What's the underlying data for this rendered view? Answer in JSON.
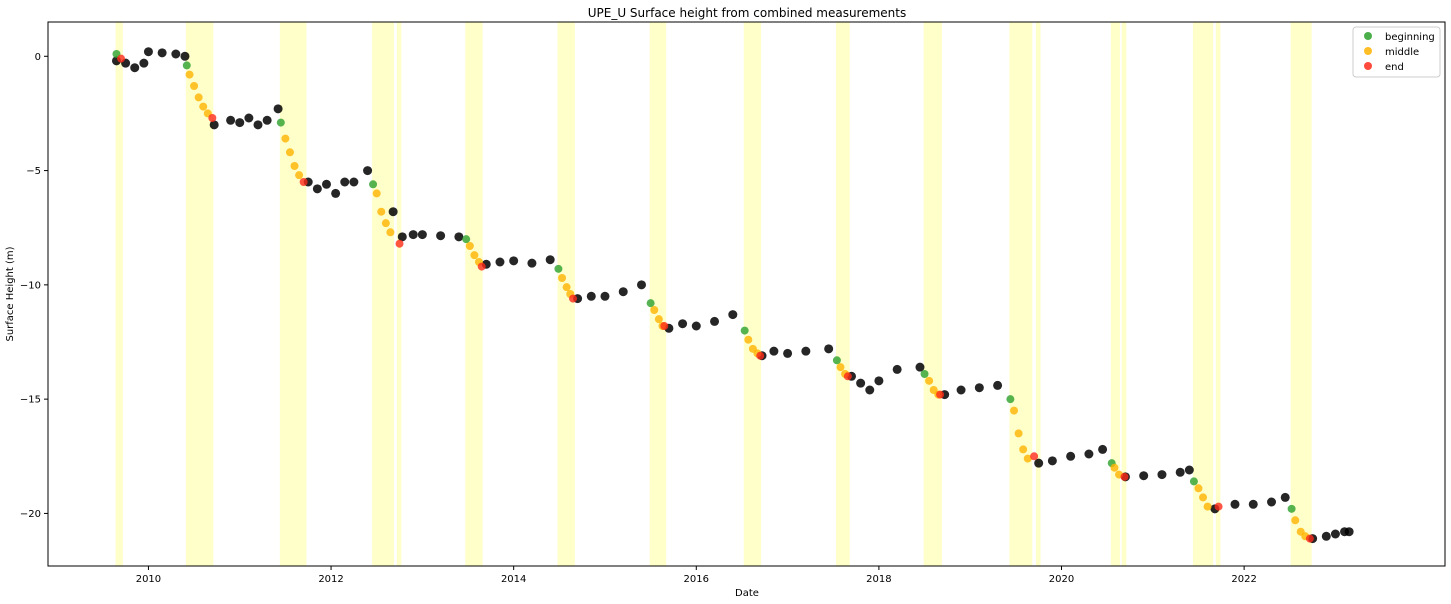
{
  "chart_data": {
    "type": "scatter",
    "title": "UPE_U Surface height from combined measurements",
    "xlabel": "Date",
    "ylabel": "Surface Height (m)",
    "xlim": [
      2008.9,
      2024.2
    ],
    "ylim": [
      -22.3,
      1.5
    ],
    "x_ticks": [
      2010,
      2012,
      2014,
      2016,
      2018,
      2020,
      2022
    ],
    "x_tick_labels": [
      "2010",
      "2012",
      "2014",
      "2016",
      "2018",
      "2020",
      "2022"
    ],
    "y_ticks": [
      0,
      -5,
      -10,
      -15,
      -20
    ],
    "y_tick_labels": [
      "0",
      "−5",
      "−10",
      "−15",
      "−20"
    ],
    "grid": false,
    "legend_position": "top-right",
    "legend": [
      {
        "name": "beginning",
        "color": "#2ca02c"
      },
      {
        "name": "middle",
        "color": "#ffb300"
      },
      {
        "name": "end",
        "color": "#ff2a1a"
      }
    ],
    "shaded_intervals_color": "#ffffc0",
    "shaded_intervals": [
      [
        2009.64,
        2009.72
      ],
      [
        2010.41,
        2010.71
      ],
      [
        2011.44,
        2011.73
      ],
      [
        2012.45,
        2012.69
      ],
      [
        2012.72,
        2012.77
      ],
      [
        2013.47,
        2013.66
      ],
      [
        2014.48,
        2014.67
      ],
      [
        2015.49,
        2015.67
      ],
      [
        2016.52,
        2016.71
      ],
      [
        2017.53,
        2017.68
      ],
      [
        2018.49,
        2018.69
      ],
      [
        2019.43,
        2019.68
      ],
      [
        2019.72,
        2019.77
      ],
      [
        2020.54,
        2020.64
      ],
      [
        2020.66,
        2020.71
      ],
      [
        2021.44,
        2021.66
      ],
      [
        2021.69,
        2021.74
      ],
      [
        2022.51,
        2022.74
      ]
    ],
    "series": [
      {
        "role": "baseline",
        "color": "#000000",
        "points": [
          [
            2009.65,
            -0.2
          ],
          [
            2009.75,
            -0.3
          ],
          [
            2009.85,
            -0.5
          ],
          [
            2009.95,
            -0.3
          ],
          [
            2010.0,
            0.2
          ],
          [
            2010.15,
            0.15
          ],
          [
            2010.3,
            0.1
          ],
          [
            2010.4,
            0.0
          ],
          [
            2010.72,
            -3.0
          ],
          [
            2010.9,
            -2.8
          ],
          [
            2011.0,
            -2.9
          ],
          [
            2011.1,
            -2.7
          ],
          [
            2011.2,
            -3.0
          ],
          [
            2011.3,
            -2.8
          ],
          [
            2011.42,
            -2.3
          ],
          [
            2011.75,
            -5.5
          ],
          [
            2011.85,
            -5.8
          ],
          [
            2011.95,
            -5.6
          ],
          [
            2012.05,
            -6.0
          ],
          [
            2012.15,
            -5.5
          ],
          [
            2012.25,
            -5.5
          ],
          [
            2012.4,
            -5.0
          ],
          [
            2012.68,
            -6.8
          ],
          [
            2012.78,
            -7.9
          ],
          [
            2012.9,
            -7.8
          ],
          [
            2013.0,
            -7.8
          ],
          [
            2013.2,
            -7.85
          ],
          [
            2013.4,
            -7.9
          ],
          [
            2013.7,
            -9.1
          ],
          [
            2013.85,
            -9.0
          ],
          [
            2014.0,
            -8.95
          ],
          [
            2014.2,
            -9.05
          ],
          [
            2014.4,
            -8.9
          ],
          [
            2014.7,
            -10.6
          ],
          [
            2014.85,
            -10.5
          ],
          [
            2015.0,
            -10.5
          ],
          [
            2015.2,
            -10.3
          ],
          [
            2015.4,
            -10.0
          ],
          [
            2015.7,
            -11.9
          ],
          [
            2015.85,
            -11.7
          ],
          [
            2016.0,
            -11.8
          ],
          [
            2016.2,
            -11.6
          ],
          [
            2016.4,
            -11.3
          ],
          [
            2016.72,
            -13.1
          ],
          [
            2016.85,
            -12.9
          ],
          [
            2017.0,
            -13.0
          ],
          [
            2017.2,
            -12.9
          ],
          [
            2017.45,
            -12.8
          ],
          [
            2017.7,
            -14.0
          ],
          [
            2017.8,
            -14.3
          ],
          [
            2017.9,
            -14.6
          ],
          [
            2018.0,
            -14.2
          ],
          [
            2018.2,
            -13.7
          ],
          [
            2018.45,
            -13.6
          ],
          [
            2018.72,
            -14.8
          ],
          [
            2018.9,
            -14.6
          ],
          [
            2019.1,
            -14.5
          ],
          [
            2019.3,
            -14.4
          ],
          [
            2019.75,
            -17.8
          ],
          [
            2019.9,
            -17.7
          ],
          [
            2020.1,
            -17.5
          ],
          [
            2020.3,
            -17.4
          ],
          [
            2020.45,
            -17.2
          ],
          [
            2020.7,
            -18.4
          ],
          [
            2020.9,
            -18.35
          ],
          [
            2021.1,
            -18.3
          ],
          [
            2021.3,
            -18.2
          ],
          [
            2021.4,
            -18.1
          ],
          [
            2021.68,
            -19.8
          ],
          [
            2021.9,
            -19.6
          ],
          [
            2022.1,
            -19.6
          ],
          [
            2022.3,
            -19.5
          ],
          [
            2022.45,
            -19.3
          ],
          [
            2022.75,
            -21.1
          ],
          [
            2022.9,
            -21.0
          ],
          [
            2023.0,
            -20.9
          ],
          [
            2023.1,
            -20.8
          ],
          [
            2023.15,
            -20.8
          ]
        ]
      },
      {
        "role": "beginning",
        "color": "#2ca02c",
        "points": [
          [
            2009.65,
            0.1
          ],
          [
            2010.42,
            -0.4
          ],
          [
            2011.45,
            -2.9
          ],
          [
            2012.46,
            -5.6
          ],
          [
            2013.48,
            -8.0
          ],
          [
            2014.49,
            -9.3
          ],
          [
            2015.5,
            -10.8
          ],
          [
            2016.53,
            -12.0
          ],
          [
            2017.54,
            -13.3
          ],
          [
            2018.5,
            -13.9
          ],
          [
            2019.44,
            -15.0
          ],
          [
            2020.55,
            -17.8
          ],
          [
            2021.45,
            -18.6
          ],
          [
            2022.52,
            -19.8
          ]
        ]
      },
      {
        "role": "middle",
        "color": "#ffb300",
        "points": [
          [
            2010.45,
            -0.8
          ],
          [
            2010.5,
            -1.3
          ],
          [
            2010.55,
            -1.8
          ],
          [
            2010.6,
            -2.2
          ],
          [
            2010.65,
            -2.5
          ],
          [
            2011.5,
            -3.6
          ],
          [
            2011.55,
            -4.2
          ],
          [
            2011.6,
            -4.8
          ],
          [
            2011.65,
            -5.2
          ],
          [
            2012.5,
            -6.0
          ],
          [
            2012.55,
            -6.8
          ],
          [
            2012.6,
            -7.3
          ],
          [
            2012.65,
            -7.7
          ],
          [
            2013.52,
            -8.3
          ],
          [
            2013.57,
            -8.7
          ],
          [
            2013.62,
            -9.0
          ],
          [
            2014.53,
            -9.7
          ],
          [
            2014.58,
            -10.1
          ],
          [
            2014.62,
            -10.4
          ],
          [
            2015.54,
            -11.1
          ],
          [
            2015.59,
            -11.5
          ],
          [
            2015.63,
            -11.8
          ],
          [
            2016.57,
            -12.4
          ],
          [
            2016.62,
            -12.8
          ],
          [
            2016.67,
            -13.0
          ],
          [
            2017.58,
            -13.6
          ],
          [
            2017.63,
            -13.9
          ],
          [
            2018.55,
            -14.2
          ],
          [
            2018.6,
            -14.6
          ],
          [
            2018.65,
            -14.8
          ],
          [
            2019.48,
            -15.5
          ],
          [
            2019.53,
            -16.5
          ],
          [
            2019.58,
            -17.2
          ],
          [
            2019.63,
            -17.6
          ],
          [
            2020.58,
            -18.0
          ],
          [
            2020.63,
            -18.3
          ],
          [
            2021.5,
            -18.9
          ],
          [
            2021.55,
            -19.3
          ],
          [
            2021.6,
            -19.7
          ],
          [
            2022.56,
            -20.3
          ],
          [
            2022.62,
            -20.8
          ],
          [
            2022.67,
            -21.0
          ]
        ]
      },
      {
        "role": "end",
        "color": "#ff2a1a",
        "points": [
          [
            2009.7,
            -0.1
          ],
          [
            2010.7,
            -2.7
          ],
          [
            2011.7,
            -5.5
          ],
          [
            2012.75,
            -8.2
          ],
          [
            2013.65,
            -9.2
          ],
          [
            2014.65,
            -10.6
          ],
          [
            2015.65,
            -11.8
          ],
          [
            2016.7,
            -13.1
          ],
          [
            2017.66,
            -14.0
          ],
          [
            2018.67,
            -14.8
          ],
          [
            2019.7,
            -17.5
          ],
          [
            2020.69,
            -18.4
          ],
          [
            2021.72,
            -19.7
          ],
          [
            2022.72,
            -21.1
          ]
        ]
      }
    ]
  }
}
